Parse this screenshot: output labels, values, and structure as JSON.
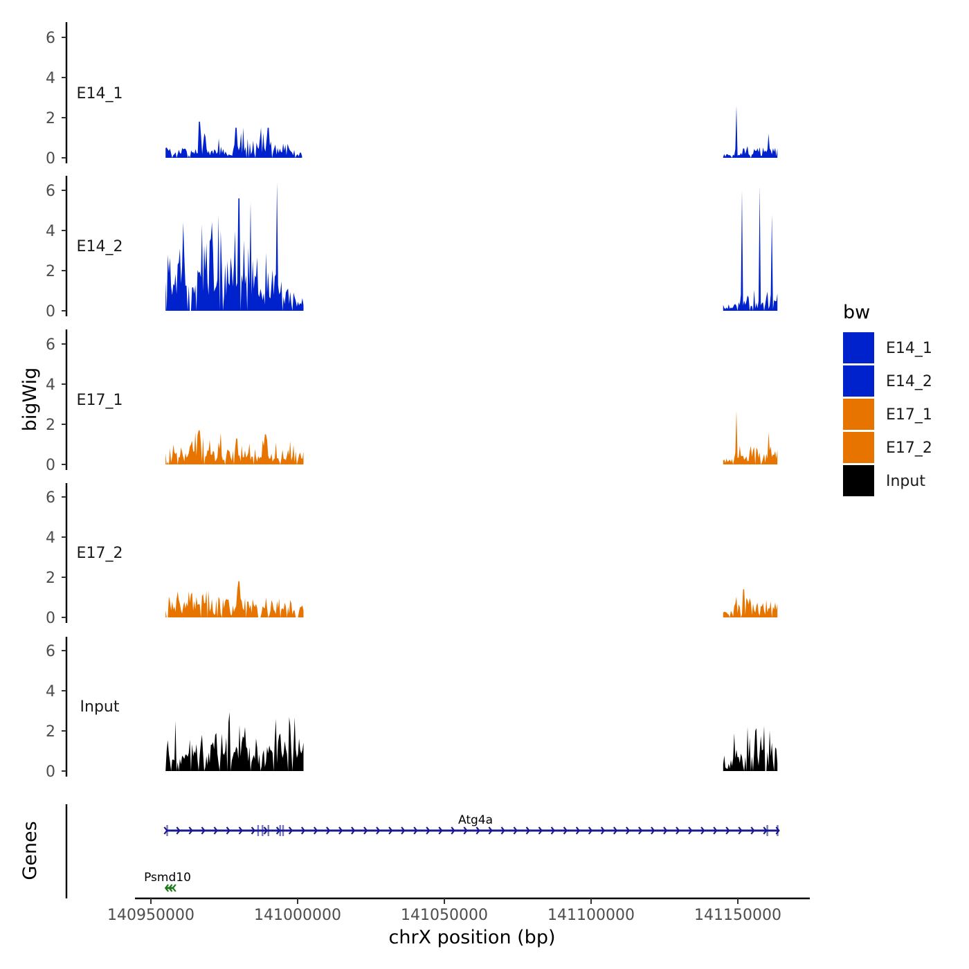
{
  "chart_data": {
    "type": "area",
    "title": "",
    "xlabel": "chrX position (bp)",
    "ylabel": "bigWig",
    "genes_track_label": "Genes",
    "xlim": [
      140940000,
      141170000
    ],
    "x_ticks": [
      140950000,
      141000000,
      141050000,
      141100000,
      141150000
    ],
    "x_tick_labels": [
      "140950000",
      "141000000",
      "141050000",
      "141100000",
      "141150000"
    ],
    "ylim": [
      0,
      6.8
    ],
    "y_ticks": [
      0,
      2,
      4,
      6
    ],
    "y_tick_labels": [
      "0",
      "2",
      "4",
      "6"
    ],
    "grid": false,
    "legend": {
      "title": "bw",
      "position": "right",
      "entries": [
        {
          "label": "E14_1",
          "color": "#0022CC"
        },
        {
          "label": "E14_2",
          "color": "#0022CC"
        },
        {
          "label": "E17_1",
          "color": "#E87400"
        },
        {
          "label": "E17_2",
          "color": "#E87400"
        },
        {
          "label": "Input",
          "color": "#000000"
        }
      ]
    },
    "series": [
      {
        "name": "E14_1",
        "color": "#0022CC",
        "regions": [
          {
            "start": 140955000,
            "end": 141001500
          },
          {
            "start": 141145000,
            "end": 141163500
          }
        ],
        "peaks": [
          [
            140966500,
            1.8
          ],
          [
            140979000,
            1.5
          ],
          [
            140981500,
            1.5
          ],
          [
            140987500,
            1.5
          ],
          [
            140990000,
            1.5
          ],
          [
            141149500,
            2.6
          ],
          [
            141160500,
            1.2
          ]
        ],
        "profile": [
          0.4,
          0.3,
          0.6,
          0.5,
          0.8,
          0.5,
          0.6,
          0.4,
          0.9,
          0.6,
          0.5,
          0.7,
          0.6,
          0.4,
          0.5,
          0.3
        ]
      },
      {
        "name": "E14_2",
        "color": "#0022CC",
        "regions": [
          {
            "start": 140955000,
            "end": 141002000
          },
          {
            "start": 141145000,
            "end": 141163500
          }
        ],
        "peaks": [
          [
            140961000,
            4.4
          ],
          [
            140980000,
            5.6
          ],
          [
            140984000,
            5.4
          ],
          [
            140993000,
            6.4
          ],
          [
            141151500,
            6.0
          ],
          [
            141157500,
            6.2
          ],
          [
            141161500,
            4.8
          ]
        ],
        "profile": [
          1.8,
          2.2,
          2.6,
          2.0,
          2.8,
          2.4,
          3.0,
          2.6,
          2.8,
          2.5,
          2.7,
          2.0,
          1.6,
          1.2,
          0.8,
          0.5
        ]
      },
      {
        "name": "E17_1",
        "color": "#E87400",
        "regions": [
          {
            "start": 140955000,
            "end": 141002000
          },
          {
            "start": 141145000,
            "end": 141163500
          }
        ],
        "peaks": [
          [
            140966500,
            1.7
          ],
          [
            140989000,
            1.5
          ],
          [
            141149500,
            2.7
          ],
          [
            141160500,
            1.6
          ]
        ],
        "profile": [
          0.6,
          0.8,
          0.7,
          1.0,
          0.8,
          0.7,
          0.9,
          0.6,
          0.8,
          0.7,
          0.6,
          0.8,
          0.6,
          0.5,
          0.6,
          0.5
        ]
      },
      {
        "name": "E17_2",
        "color": "#E87400",
        "regions": [
          {
            "start": 140955000,
            "end": 141002000
          },
          {
            "start": 141145000,
            "end": 141163500
          }
        ],
        "peaks": [
          [
            140980000,
            1.8
          ],
          [
            140963000,
            1.3
          ],
          [
            141152000,
            1.4
          ]
        ],
        "profile": [
          0.6,
          0.7,
          0.9,
          0.7,
          0.8,
          0.6,
          0.8,
          0.7,
          0.9,
          0.6,
          0.7,
          0.8,
          0.6,
          0.5,
          0.6,
          0.5
        ]
      },
      {
        "name": "Input",
        "color": "#000000",
        "regions": [
          {
            "start": 140955000,
            "end": 141002000
          },
          {
            "start": 141145000,
            "end": 141163500
          }
        ],
        "peaks": [
          [
            140958500,
            2.5
          ],
          [
            140982000,
            2.2
          ],
          [
            140992500,
            2.6
          ],
          [
            141156000,
            2.0
          ]
        ],
        "profile": [
          1.0,
          1.2,
          1.1,
          0.9,
          1.0,
          1.2,
          1.4,
          1.6,
          1.3,
          1.1,
          1.0,
          0.8,
          1.0,
          1.3,
          1.5,
          1.2
        ]
      }
    ],
    "genes": [
      {
        "name": "Atg4a",
        "strand": "+",
        "start": 140955500,
        "end": 141164000,
        "color": "#1A1A8C",
        "exons": [
          140955500,
          140986500,
          140988000,
          140990000,
          140994000,
          140995000,
          141160000,
          141163500
        ]
      },
      {
        "name": "Psmd10",
        "strand": "-",
        "start": 140955000,
        "end": 140957500,
        "color": "#1A7A1A",
        "exons": []
      }
    ]
  }
}
